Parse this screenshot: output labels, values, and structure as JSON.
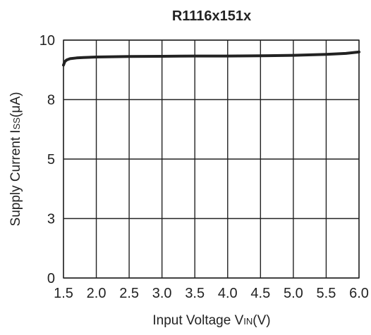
{
  "chart_data": {
    "type": "line",
    "title": "R1116x151x",
    "xlabel": {
      "prefix": "Input Voltage V",
      "subscript": "IN",
      "suffix": "(V)"
    },
    "ylabel": {
      "prefix": "Supply Current I",
      "subscript": "SS",
      "suffix": "(μA)"
    },
    "xlim": [
      1.5,
      6.0
    ],
    "ylim": [
      0,
      10
    ],
    "x_ticks": [
      1.5,
      2.0,
      2.5,
      3.0,
      3.5,
      4.0,
      4.5,
      5.0,
      5.5,
      6.0
    ],
    "x_tick_labels": [
      "1.5",
      "2.0",
      "2.5",
      "3.0",
      "3.5",
      "4.0",
      "4.5",
      "5.0",
      "5.5",
      "6.0"
    ],
    "y_gridlines": [
      0,
      2.5,
      5,
      7.5,
      10
    ],
    "y_tick_labels": [
      "0",
      "3",
      "5",
      "8",
      "10"
    ],
    "grid": true,
    "series": [
      {
        "x": [
          1.5,
          1.52,
          1.55,
          1.6,
          1.7,
          1.8,
          2.0,
          2.5,
          3.0,
          3.5,
          4.0,
          4.5,
          5.0,
          5.5,
          5.8,
          6.0
        ],
        "y": [
          8.95,
          9.1,
          9.17,
          9.22,
          9.25,
          9.27,
          9.29,
          9.31,
          9.32,
          9.33,
          9.33,
          9.34,
          9.36,
          9.4,
          9.44,
          9.5
        ]
      }
    ]
  }
}
